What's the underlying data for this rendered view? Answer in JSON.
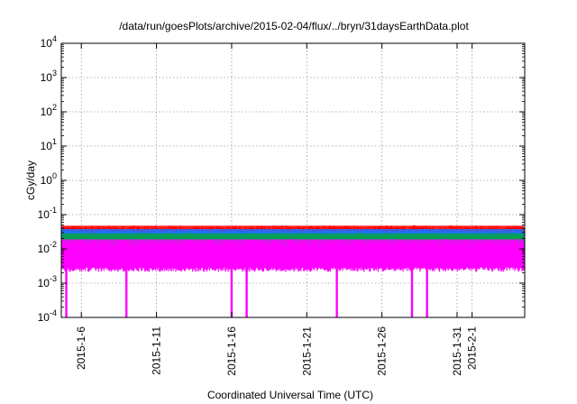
{
  "chart_data": {
    "type": "area",
    "title": "/data/run/goesPlots/archive/2015-02-04/flux/../bryn/31daysEarthData.plot",
    "xlabel": "Coordinated Universal Time (UTC)",
    "ylabel": "cGy/day",
    "yscale": "log",
    "ylim": [
      0.0001,
      10000
    ],
    "xlim": [
      "2015-01-04 16:00",
      "2015-02-04 12:00"
    ],
    "grid": true,
    "legend": "none",
    "y_ticks": [
      {
        "value": 0.0001,
        "base": "10",
        "exp": "-4"
      },
      {
        "value": 0.001,
        "base": "10",
        "exp": "-3"
      },
      {
        "value": 0.01,
        "base": "10",
        "exp": "-2"
      },
      {
        "value": 0.1,
        "base": "10",
        "exp": "-1"
      },
      {
        "value": 1,
        "base": "10",
        "exp": "0"
      },
      {
        "value": 10,
        "base": "10",
        "exp": "1"
      },
      {
        "value": 100,
        "base": "10",
        "exp": "2"
      },
      {
        "value": 1000,
        "base": "10",
        "exp": "3"
      },
      {
        "value": 10000,
        "base": "10",
        "exp": "4"
      }
    ],
    "x_ticks": [
      {
        "value": "2015-01-06",
        "label": "2015-1-6"
      },
      {
        "value": "2015-01-11",
        "label": "2015-1-11"
      },
      {
        "value": "2015-01-16",
        "label": "2015-1-16"
      },
      {
        "value": "2015-01-21",
        "label": "2015-1-21"
      },
      {
        "value": "2015-01-26",
        "label": "2015-1-26"
      },
      {
        "value": "2015-01-31",
        "label": "2015-1-31"
      },
      {
        "value": "2015-02-01",
        "label": "2015-2-1"
      }
    ],
    "series": [
      {
        "color": "#ff0000",
        "typical_range": [
          0.02,
          0.05
        ]
      },
      {
        "color": "#1e6fff",
        "typical_range": [
          0.012,
          0.04
        ]
      },
      {
        "color": "#00a050",
        "typical_range": [
          0.01,
          0.03
        ]
      },
      {
        "color": "#ff00ff",
        "typical_range": [
          0.0025,
          0.02
        ]
      }
    ],
    "dropouts": [
      "2015-01-05",
      "2015-01-09",
      "2015-01-16",
      "2015-01-17",
      "2015-01-23",
      "2015-01-28",
      "2015-01-29"
    ]
  }
}
